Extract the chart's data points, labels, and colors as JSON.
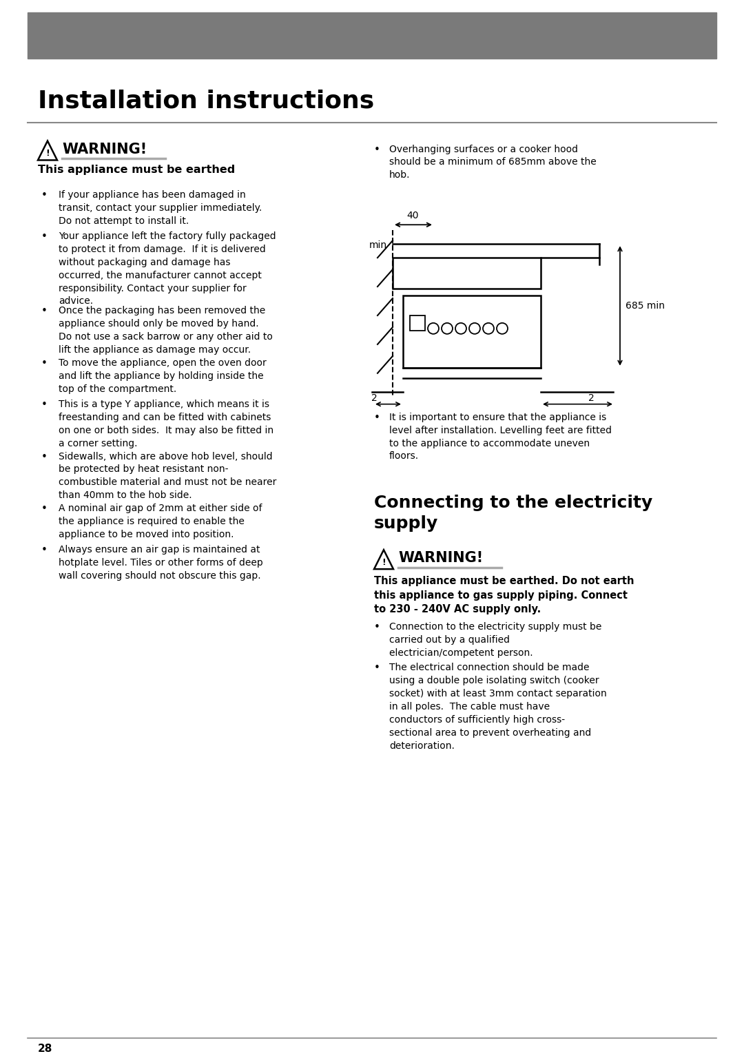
{
  "bg_color": "#ffffff",
  "header_bar_color": "#7a7a7a",
  "page_title": "Installation instructions",
  "warning1_label": "WARNING!",
  "warning1_sub": "This appliance must be earthed",
  "left_bullets": [
    "If your appliance has been damaged in\ntransit, contact your supplier immediately.\nDo not attempt to install it.",
    "Your appliance left the factory fully packaged\nto protect it from damage.  If it is delivered\nwithout packaging and damage has\noccurred, the manufacturer cannot accept\nresponsibility. Contact your supplier for\nadvice.",
    "Once the packaging has been removed the\nappliance should only be moved by hand.\nDo not use a sack barrow or any other aid to\nlift the appliance as damage may occur.",
    "To move the appliance, open the oven door\nand lift the appliance by holding inside the\ntop of the compartment.",
    "This is a type Y appliance, which means it is\nfreestanding and can be fitted with cabinets\non one or both sides.  It may also be fitted in\na corner setting.",
    "Sidewalls, which are above hob level, should\nbe protected by heat resistant non-\ncombustible material and must not be nearer\nthan 40mm to the hob side.",
    "A nominal air gap of 2mm at either side of\nthe appliance is required to enable the\nappliance to be moved into position.",
    "Always ensure an air gap is maintained at\nhotplate level. Tiles or other forms of deep\nwall covering should not obscure this gap."
  ],
  "right_bullet1": "Overhanging surfaces or a cooker hood\nshould be a minimum of 685mm above the\nhob.",
  "right_bullet2": "It is important to ensure that the appliance is\nlevel after installation. Levelling feet are fitted\nto the appliance to accommodate uneven\nfloors.",
  "section2_title": "Connecting to the electricity\nsupply",
  "warning2_bold": "This appliance must be earthed. Do not earth\nthis appliance to gas supply piping. Connect\nto 230 - 240V AC supply only.",
  "right_bullets2": [
    "Connection to the electricity supply must be\ncarried out by a qualified\nelectrician/competent person.",
    "The electrical connection should be made\nusing a double pole isolating switch (cooker\nsocket) with at least 3mm contact separation\nin all poles.  The cable must have\nconductors of sufficiently high cross-\nsectional area to prevent overheating and\ndeterioration."
  ],
  "footer_page": "28"
}
